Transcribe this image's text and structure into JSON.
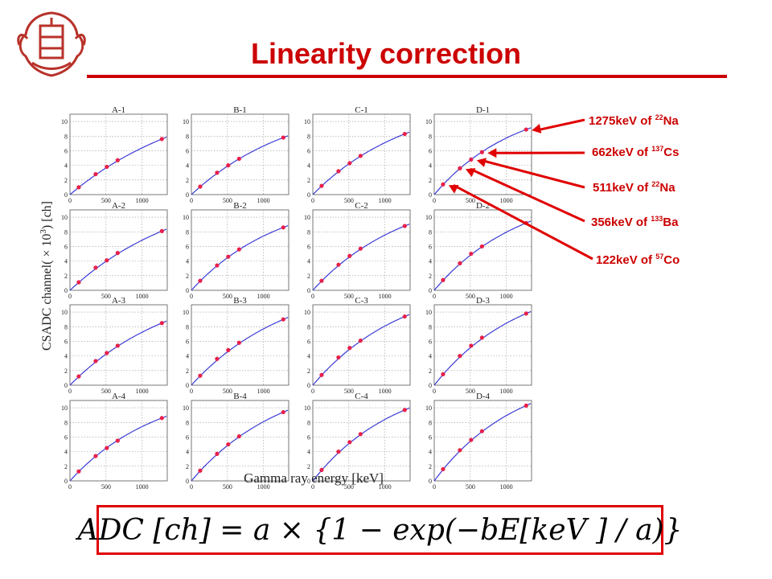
{
  "slide": {
    "title": "Linearity correction",
    "formula": "ADC [ch] = a × {1 − exp(−bE[keV ] / a)}",
    "colors": {
      "accent": "#cc0000",
      "curve": "#3b3bd6",
      "point": "#e8204a",
      "formula_border": "#e00000"
    }
  },
  "annotations": [
    {
      "energy": "1275keV of ",
      "isotope_mass": "22",
      "isotope": "Na"
    },
    {
      "energy": "662keV of ",
      "isotope_mass": "137",
      "isotope": "Cs"
    },
    {
      "energy": "511keV of ",
      "isotope_mass": "22",
      "isotope": "Na"
    },
    {
      "energy": "356keV of ",
      "isotope_mass": "133",
      "isotope": "Ba"
    },
    {
      "energy": "122keV of ",
      "isotope_mass": "57",
      "isotope": "Co"
    }
  ],
  "chart_data": {
    "type": "scatter",
    "xlabel": "Gamma ray energy [keV]",
    "ylabel": "CSADC channel( × 10^3) [ch]",
    "x": [
      122,
      356,
      511,
      662,
      1275
    ],
    "xlim": [
      0,
      1350
    ],
    "ylim": [
      0,
      11
    ],
    "xticks": [
      "0",
      "500",
      "1000"
    ],
    "yticks": [
      "0",
      "2",
      "4",
      "6",
      "8",
      "10"
    ],
    "grid": true,
    "fit": "ADC = a(1 − exp(−bE/a))",
    "panels": [
      {
        "name": "A-1",
        "y": [
          1.0,
          2.8,
          3.8,
          4.7,
          7.6
        ]
      },
      {
        "name": "B-1",
        "y": [
          1.1,
          3.0,
          4.0,
          4.9,
          7.8
        ]
      },
      {
        "name": "C-1",
        "y": [
          1.2,
          3.2,
          4.3,
          5.3,
          8.3
        ]
      },
      {
        "name": "D-1",
        "y": [
          1.4,
          3.6,
          4.8,
          5.8,
          8.9
        ]
      },
      {
        "name": "A-2",
        "y": [
          1.1,
          3.1,
          4.1,
          5.1,
          8.1
        ]
      },
      {
        "name": "B-2",
        "y": [
          1.3,
          3.4,
          4.6,
          5.6,
          8.6
        ]
      },
      {
        "name": "C-2",
        "y": [
          1.3,
          3.5,
          4.7,
          5.7,
          8.8
        ]
      },
      {
        "name": "D-2",
        "y": [
          1.4,
          3.7,
          5.0,
          6.0,
          9.2
        ]
      },
      {
        "name": "A-3",
        "y": [
          1.2,
          3.3,
          4.4,
          5.4,
          8.5
        ]
      },
      {
        "name": "B-3",
        "y": [
          1.3,
          3.6,
          4.8,
          5.8,
          9.0
        ]
      },
      {
        "name": "C-3",
        "y": [
          1.4,
          3.8,
          5.1,
          6.1,
          9.4
        ]
      },
      {
        "name": "D-3",
        "y": [
          1.5,
          4.0,
          5.4,
          6.5,
          9.8
        ]
      },
      {
        "name": "A-4",
        "y": [
          1.3,
          3.4,
          4.5,
          5.5,
          8.6
        ]
      },
      {
        "name": "B-4",
        "y": [
          1.4,
          3.7,
          5.0,
          6.1,
          9.4
        ]
      },
      {
        "name": "C-4",
        "y": [
          1.5,
          4.0,
          5.3,
          6.4,
          9.7
        ]
      },
      {
        "name": "D-4",
        "y": [
          1.6,
          4.2,
          5.6,
          6.8,
          10.3
        ]
      }
    ]
  }
}
